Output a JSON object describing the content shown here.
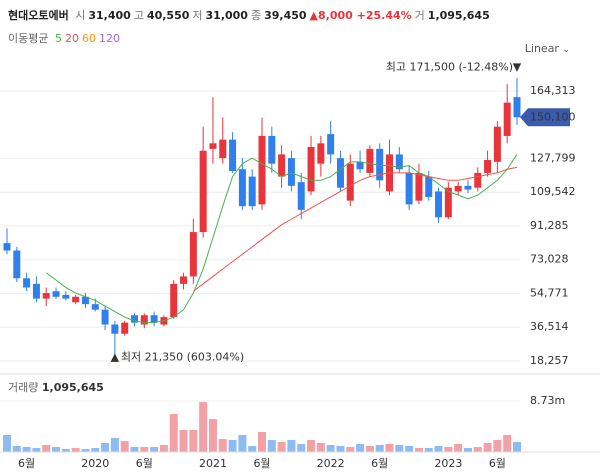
{
  "chart_data": {
    "type": "candlestick",
    "header": {
      "name": "현대오토에버",
      "items": [
        {
          "label": "시",
          "value": "31,400"
        },
        {
          "label": "고",
          "value": "40,550"
        },
        {
          "label": "저",
          "value": "31,000"
        },
        {
          "label": "종",
          "value": "39,450"
        }
      ],
      "change": "▲8,000 +25.44%",
      "volume_label": "거",
      "volume": "1,095,645"
    },
    "ma_legend": {
      "label": "이동평균",
      "periods": [
        {
          "text": "5",
          "color": "#4caf50"
        },
        {
          "text": "20",
          "color": "#ef5350"
        },
        {
          "text": "60",
          "color": "#ff9800"
        },
        {
          "text": "120",
          "color": "#9c6ade"
        }
      ]
    },
    "scale_mode": "Linear",
    "categories": [
      null,
      null,
      "6월",
      null,
      null,
      null,
      null,
      null,
      null,
      "2020",
      null,
      null,
      null,
      null,
      "6월",
      null,
      null,
      null,
      null,
      null,
      null,
      "2021",
      null,
      null,
      null,
      null,
      "6월",
      null,
      null,
      null,
      null,
      null,
      null,
      "2022",
      null,
      null,
      null,
      null,
      "6월",
      null,
      null,
      null,
      null,
      null,
      null,
      "2023",
      null,
      null,
      null,
      null,
      "6월",
      null,
      null
    ],
    "open": [
      82000,
      78000,
      63000,
      60000,
      52000,
      56000,
      54000,
      50000,
      53000,
      49000,
      46000,
      38000,
      33000,
      43000,
      38000,
      43000,
      38000,
      42000,
      60000,
      64000,
      88000,
      133000,
      128000,
      138000,
      122000,
      118000,
      103000,
      140000,
      118000,
      128000,
      115000,
      110000,
      125000,
      141000,
      128000,
      105000,
      126000,
      120000,
      133000,
      110000,
      130000,
      120000,
      105000,
      118000,
      110000,
      96000,
      110000,
      113000,
      112000,
      120000,
      126000,
      140000,
      161000
    ],
    "high": [
      90000,
      80000,
      66000,
      64000,
      58000,
      58000,
      56000,
      54000,
      55000,
      52000,
      48000,
      40000,
      40000,
      44000,
      44000,
      45000,
      43000,
      62000,
      66000,
      95000,
      145000,
      161000,
      150000,
      142000,
      128000,
      122000,
      150000,
      145000,
      135000,
      132000,
      120000,
      140000,
      140000,
      148000,
      132000,
      130000,
      132000,
      135000,
      136000,
      138000,
      134000,
      124000,
      125000,
      121000,
      112000,
      115000,
      115000,
      116000,
      123000,
      132000,
      148000,
      168000,
      171500
    ],
    "low": [
      76000,
      61000,
      56000,
      50000,
      48000,
      52000,
      51000,
      49000,
      47000,
      45000,
      35000,
      21350,
      32000,
      37000,
      36000,
      37000,
      37000,
      41000,
      57000,
      60000,
      85000,
      125000,
      125000,
      120000,
      100000,
      100000,
      100000,
      120000,
      112000,
      110000,
      95000,
      108000,
      118000,
      125000,
      110000,
      102000,
      120000,
      118000,
      112000,
      108000,
      120000,
      100000,
      103000,
      105000,
      93000,
      95000,
      108000,
      109000,
      110000,
      118000,
      120000,
      136000,
      146000
    ],
    "close": [
      78000,
      63000,
      58000,
      52000,
      55000,
      53000,
      52000,
      53000,
      49000,
      46000,
      38000,
      33000,
      39000,
      39000,
      43000,
      39000,
      42000,
      60000,
      64000,
      88000,
      132000,
      136000,
      138000,
      121000,
      102000,
      102000,
      140000,
      125000,
      130000,
      113000,
      100000,
      134000,
      136000,
      130000,
      112000,
      125000,
      122000,
      133000,
      116000,
      130000,
      122000,
      103000,
      120000,
      107000,
      96000,
      112000,
      113000,
      111000,
      120000,
      127000,
      145000,
      158000,
      150100
    ],
    "up_color": "#e8343b",
    "down_color": "#2f80ed",
    "series": [
      {
        "name": "5",
        "color": "#4caf50",
        "values": [
          null,
          null,
          null,
          null,
          66000,
          62000,
          58000,
          55000,
          53000,
          51000,
          48000,
          45000,
          42000,
          40000,
          39000,
          39000,
          40000,
          42000,
          46000,
          55000,
          68000,
          85000,
          102000,
          118000,
          125000,
          128000,
          125000,
          122000,
          118000,
          120000,
          118000,
          116000,
          116000,
          118000,
          122000,
          126000,
          126000,
          125000,
          124000,
          124000,
          123000,
          124000,
          120000,
          118000,
          114000,
          110000,
          108000,
          106000,
          108000,
          112000,
          116000,
          122000,
          130000
        ]
      },
      {
        "name": "20",
        "color": "#ef5350",
        "values": [
          null,
          null,
          null,
          null,
          null,
          null,
          null,
          null,
          null,
          null,
          null,
          null,
          null,
          null,
          null,
          null,
          null,
          null,
          null,
          56000,
          60000,
          64000,
          68000,
          72000,
          76000,
          80000,
          84000,
          88000,
          92000,
          95000,
          98000,
          101000,
          104000,
          107000,
          110000,
          113000,
          116000,
          118000,
          119000,
          120000,
          120000,
          120000,
          119000,
          118000,
          117000,
          116000,
          116000,
          117000,
          118000,
          119000,
          120000,
          122000,
          123000
        ]
      }
    ],
    "ylim": [
      12300,
      180000
    ],
    "yticks": [
      {
        "value": 18257,
        "label": "18,257"
      },
      {
        "value": 36514,
        "label": "36,514"
      },
      {
        "value": 54771,
        "label": "54,771"
      },
      {
        "value": 73028,
        "label": "73,028"
      },
      {
        "value": 91285,
        "label": "91,285"
      },
      {
        "value": 109542,
        "label": "109,542"
      },
      {
        "value": 127799,
        "label": "127,799"
      },
      {
        "value": 164313,
        "label": "164,313"
      }
    ],
    "grid": true,
    "last_price": {
      "value": 150100,
      "label": "150,100"
    },
    "high_annotation": "최고 171,500 (-12.48%)",
    "low_annotation": "최저 21,350 (603.04%)",
    "volume": {
      "title": "거래량",
      "title_value": "1,095,645",
      "values": [
        2.91,
        1.03,
        0.86,
        0.68,
        1.2,
        0.86,
        0.51,
        0.68,
        0.51,
        0.68,
        1.54,
        2.39,
        1.88,
        0.86,
        0.86,
        0.86,
        1.2,
        6.5,
        3.76,
        3.76,
        8.55,
        5.64,
        2.22,
        2.05,
        2.91,
        1.03,
        3.42,
        2.05,
        1.71,
        2.05,
        1.37,
        2.05,
        1.54,
        1.2,
        1.03,
        0.86,
        1.37,
        1.03,
        1.2,
        1.37,
        1.2,
        1.03,
        0.68,
        0.68,
        1.03,
        0.86,
        1.37,
        0.68,
        0.86,
        1.54,
        2.05,
        2.91,
        1.71
      ],
      "ylim": [
        0,
        12.67
      ],
      "yticks": [
        {
          "value": 8.73,
          "label": "8.73m"
        }
      ],
      "up_color": "#f2a2a6",
      "down_color": "#8ebcf2"
    }
  }
}
